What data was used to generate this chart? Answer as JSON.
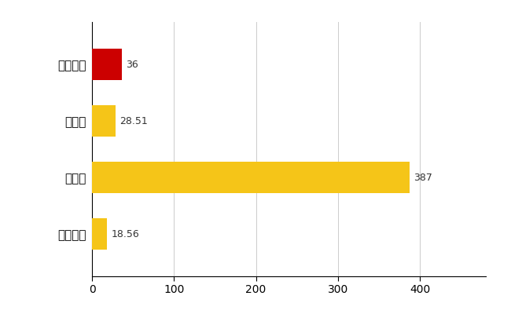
{
  "categories": [
    "福知山市",
    "県平均",
    "県最大",
    "全国平均"
  ],
  "values": [
    36,
    28.51,
    387,
    18.56
  ],
  "bar_colors": [
    "#cc0000",
    "#f5c518",
    "#f5c518",
    "#f5c518"
  ],
  "value_labels": [
    "36",
    "28.51",
    "387",
    "18.56"
  ],
  "xlim": [
    0,
    480
  ],
  "xticks": [
    0,
    100,
    200,
    300,
    400
  ],
  "background_color": "#ffffff",
  "grid_color": "#cccccc",
  "bar_height": 0.55,
  "label_fontsize": 9,
  "tick_fontsize": 10,
  "ytick_fontsize": 11
}
